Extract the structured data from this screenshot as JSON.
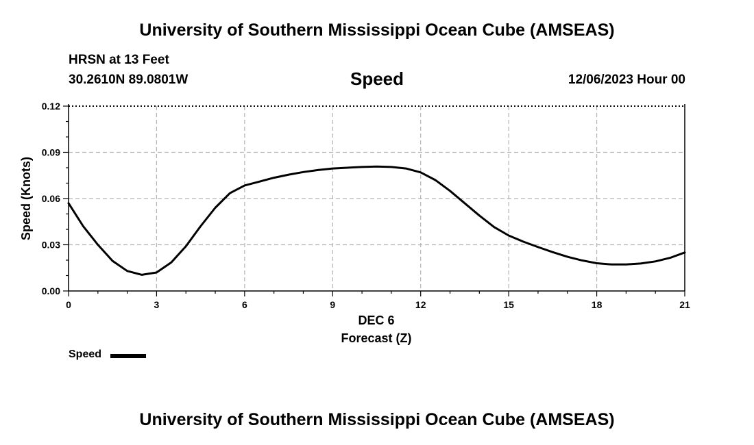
{
  "header": {
    "title_top": "University of Southern Mississippi Ocean Cube (AMSEAS)",
    "station": "HRSN at 13 Feet",
    "coords": "30.2610N  89.0801W",
    "date": "12/06/2023 Hour 00"
  },
  "footer": {
    "title_bottom": "University of Southern Mississippi Ocean Cube (AMSEAS)"
  },
  "legend": {
    "label": "Speed"
  },
  "chart_data": {
    "type": "line",
    "title": "Speed",
    "xlabel": "Forecast (Z)",
    "xsublabel": "DEC 6",
    "ylabel": "Speed (Knots)",
    "xlim": [
      0,
      21
    ],
    "ylim": [
      0,
      0.12
    ],
    "xticks": [
      0,
      3,
      6,
      9,
      12,
      15,
      18,
      21
    ],
    "xtick_labels": [
      "0",
      "3",
      "6",
      "9",
      "12",
      "15",
      "18",
      "21"
    ],
    "yticks": [
      0,
      0.03,
      0.06,
      0.09,
      0.12
    ],
    "ytick_labels": [
      "0.00",
      "0.03",
      "0.06",
      "0.09",
      "0.12"
    ],
    "grid": true,
    "legend_position": "bottom-left",
    "series": [
      {
        "name": "Speed",
        "color": "#000000",
        "x": [
          0,
          0.5,
          1,
          1.5,
          2,
          2.5,
          3,
          3.5,
          4,
          4.5,
          5,
          5.5,
          6,
          6.5,
          7,
          7.5,
          8,
          8.5,
          9,
          9.5,
          10,
          10.5,
          11,
          11.5,
          12,
          12.5,
          13,
          13.5,
          14,
          14.5,
          15,
          15.5,
          16,
          16.5,
          17,
          17.5,
          18,
          18.5,
          19,
          19.5,
          20,
          20.5,
          21
        ],
        "values": [
          0.057,
          0.042,
          0.03,
          0.0195,
          0.013,
          0.0105,
          0.012,
          0.0185,
          0.029,
          0.042,
          0.054,
          0.0635,
          0.0685,
          0.071,
          0.0735,
          0.0755,
          0.0772,
          0.0785,
          0.0795,
          0.08,
          0.0805,
          0.0808,
          0.0805,
          0.0795,
          0.077,
          0.072,
          0.065,
          0.057,
          0.049,
          0.0415,
          0.036,
          0.032,
          0.0285,
          0.0252,
          0.0222,
          0.0198,
          0.018,
          0.0172,
          0.0172,
          0.0178,
          0.0192,
          0.0215,
          0.025
        ]
      }
    ]
  }
}
